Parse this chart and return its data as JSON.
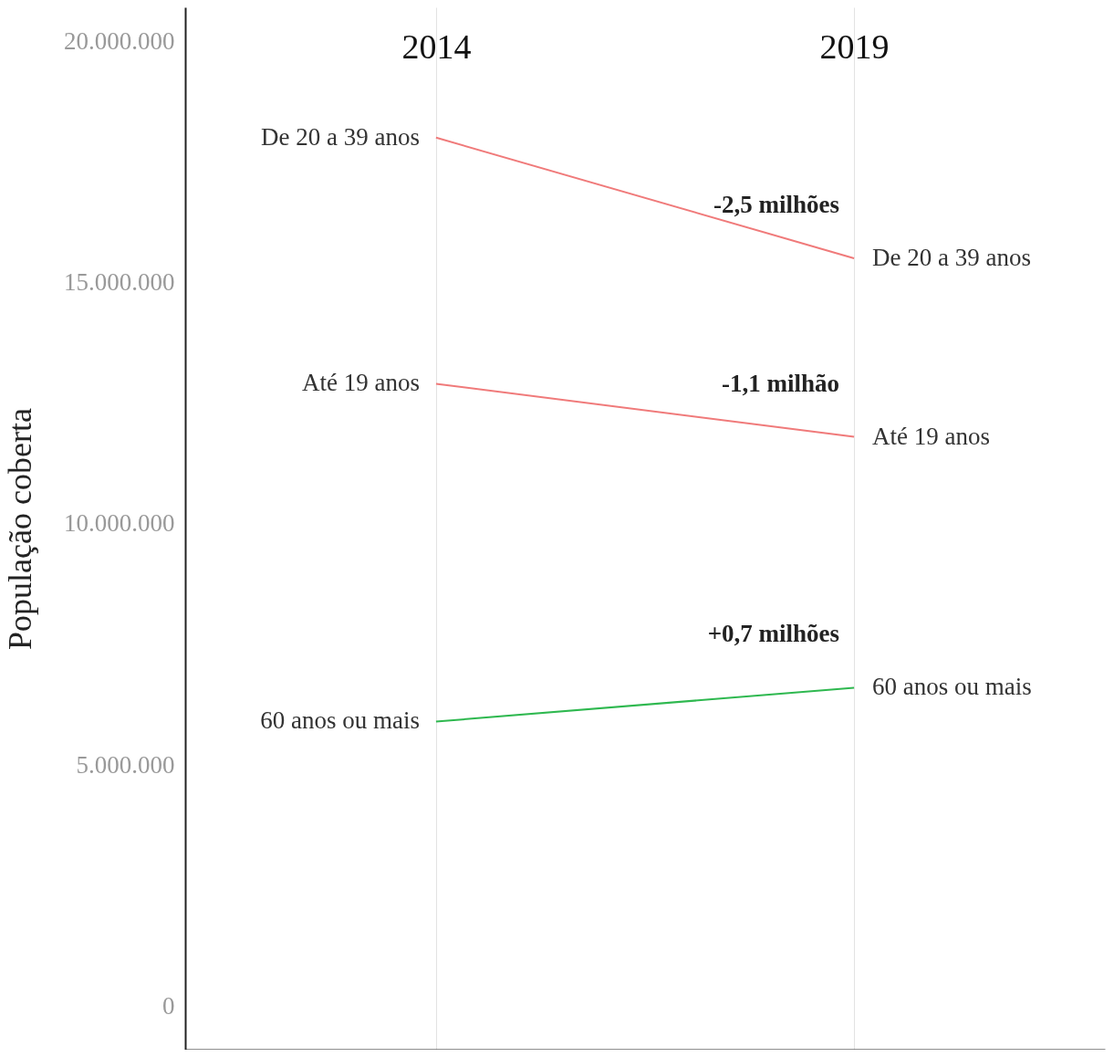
{
  "chart_data": {
    "type": "line",
    "categories": [
      "2014",
      "2019"
    ],
    "ylabel": "População coberta",
    "ylim": [
      -900000,
      20700000
    ],
    "yticks": [
      {
        "value": 0,
        "label": "0"
      },
      {
        "value": 5000000,
        "label": "5.000.000"
      },
      {
        "value": 10000000,
        "label": "10.000.000"
      },
      {
        "value": 15000000,
        "label": "15.000.000"
      },
      {
        "value": 20000000,
        "label": "20.000.000"
      }
    ],
    "series": [
      {
        "name": "De 20 a 39 anos",
        "color": "#f07a7a",
        "values": [
          18000000,
          15500000
        ]
      },
      {
        "name": "Até 19 anos",
        "color": "#f07a7a",
        "values": [
          12900000,
          11800000
        ]
      },
      {
        "name": "60 anos ou mais",
        "color": "#2eb84f",
        "values": [
          5900000,
          6600000
        ]
      }
    ],
    "annotations": [
      "-2,5 milhões",
      "-1,1 milhão",
      "+0,7 milhões"
    ],
    "grid": "x",
    "legend": false,
    "marker": "none"
  }
}
